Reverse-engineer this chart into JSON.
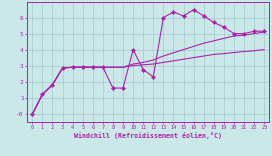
{
  "xlabel": "Windchill (Refroidissement éolien,°C)",
  "bg_color": "#cbe8e8",
  "grid_color": "#a0cccc",
  "line_color": "#aa22aa",
  "xlim": [
    -0.5,
    23.5
  ],
  "ylim": [
    -0.5,
    7.0
  ],
  "yticks": [
    0,
    1,
    2,
    3,
    4,
    5,
    6
  ],
  "ytick_labels": [
    "-0",
    "1",
    "2",
    "3",
    "4",
    "5",
    "6"
  ],
  "xticks": [
    0,
    1,
    2,
    3,
    4,
    5,
    6,
    7,
    8,
    9,
    10,
    11,
    12,
    13,
    14,
    15,
    16,
    17,
    18,
    19,
    20,
    21,
    22,
    23
  ],
  "series": [
    {
      "x": [
        0,
        1,
        2,
        3,
        4,
        5,
        6,
        7,
        8,
        9,
        10,
        11,
        12,
        13,
        14,
        15,
        16,
        17,
        18,
        19,
        20,
        21,
        22,
        23
      ],
      "y": [
        -0.05,
        1.2,
        1.8,
        2.85,
        2.9,
        2.9,
        2.9,
        2.9,
        1.6,
        1.6,
        4.0,
        2.75,
        2.3,
        6.0,
        6.35,
        6.1,
        6.5,
        6.1,
        5.7,
        5.4,
        5.0,
        5.0,
        5.15,
        5.15
      ],
      "marker": true
    },
    {
      "x": [
        0,
        1,
        2,
        3,
        4,
        5,
        6,
        7,
        8,
        9,
        10,
        11,
        12,
        13,
        14,
        15,
        16,
        17,
        18,
        19,
        20,
        21,
        22,
        23
      ],
      "y": [
        -0.05,
        1.2,
        1.8,
        2.85,
        2.9,
        2.9,
        2.9,
        2.9,
        2.9,
        2.9,
        3.1,
        3.2,
        3.35,
        3.6,
        3.8,
        4.0,
        4.2,
        4.4,
        4.55,
        4.7,
        4.85,
        4.9,
        5.0,
        5.1
      ],
      "marker": false
    },
    {
      "x": [
        0,
        1,
        2,
        3,
        4,
        5,
        6,
        7,
        8,
        9,
        10,
        11,
        12,
        13,
        14,
        15,
        16,
        17,
        18,
        19,
        20,
        21,
        22,
        23
      ],
      "y": [
        -0.05,
        1.2,
        1.8,
        2.85,
        2.9,
        2.9,
        2.9,
        2.9,
        2.9,
        2.9,
        3.0,
        3.05,
        3.1,
        3.2,
        3.3,
        3.4,
        3.5,
        3.6,
        3.7,
        3.75,
        3.82,
        3.88,
        3.93,
        4.0
      ],
      "marker": false
    }
  ]
}
